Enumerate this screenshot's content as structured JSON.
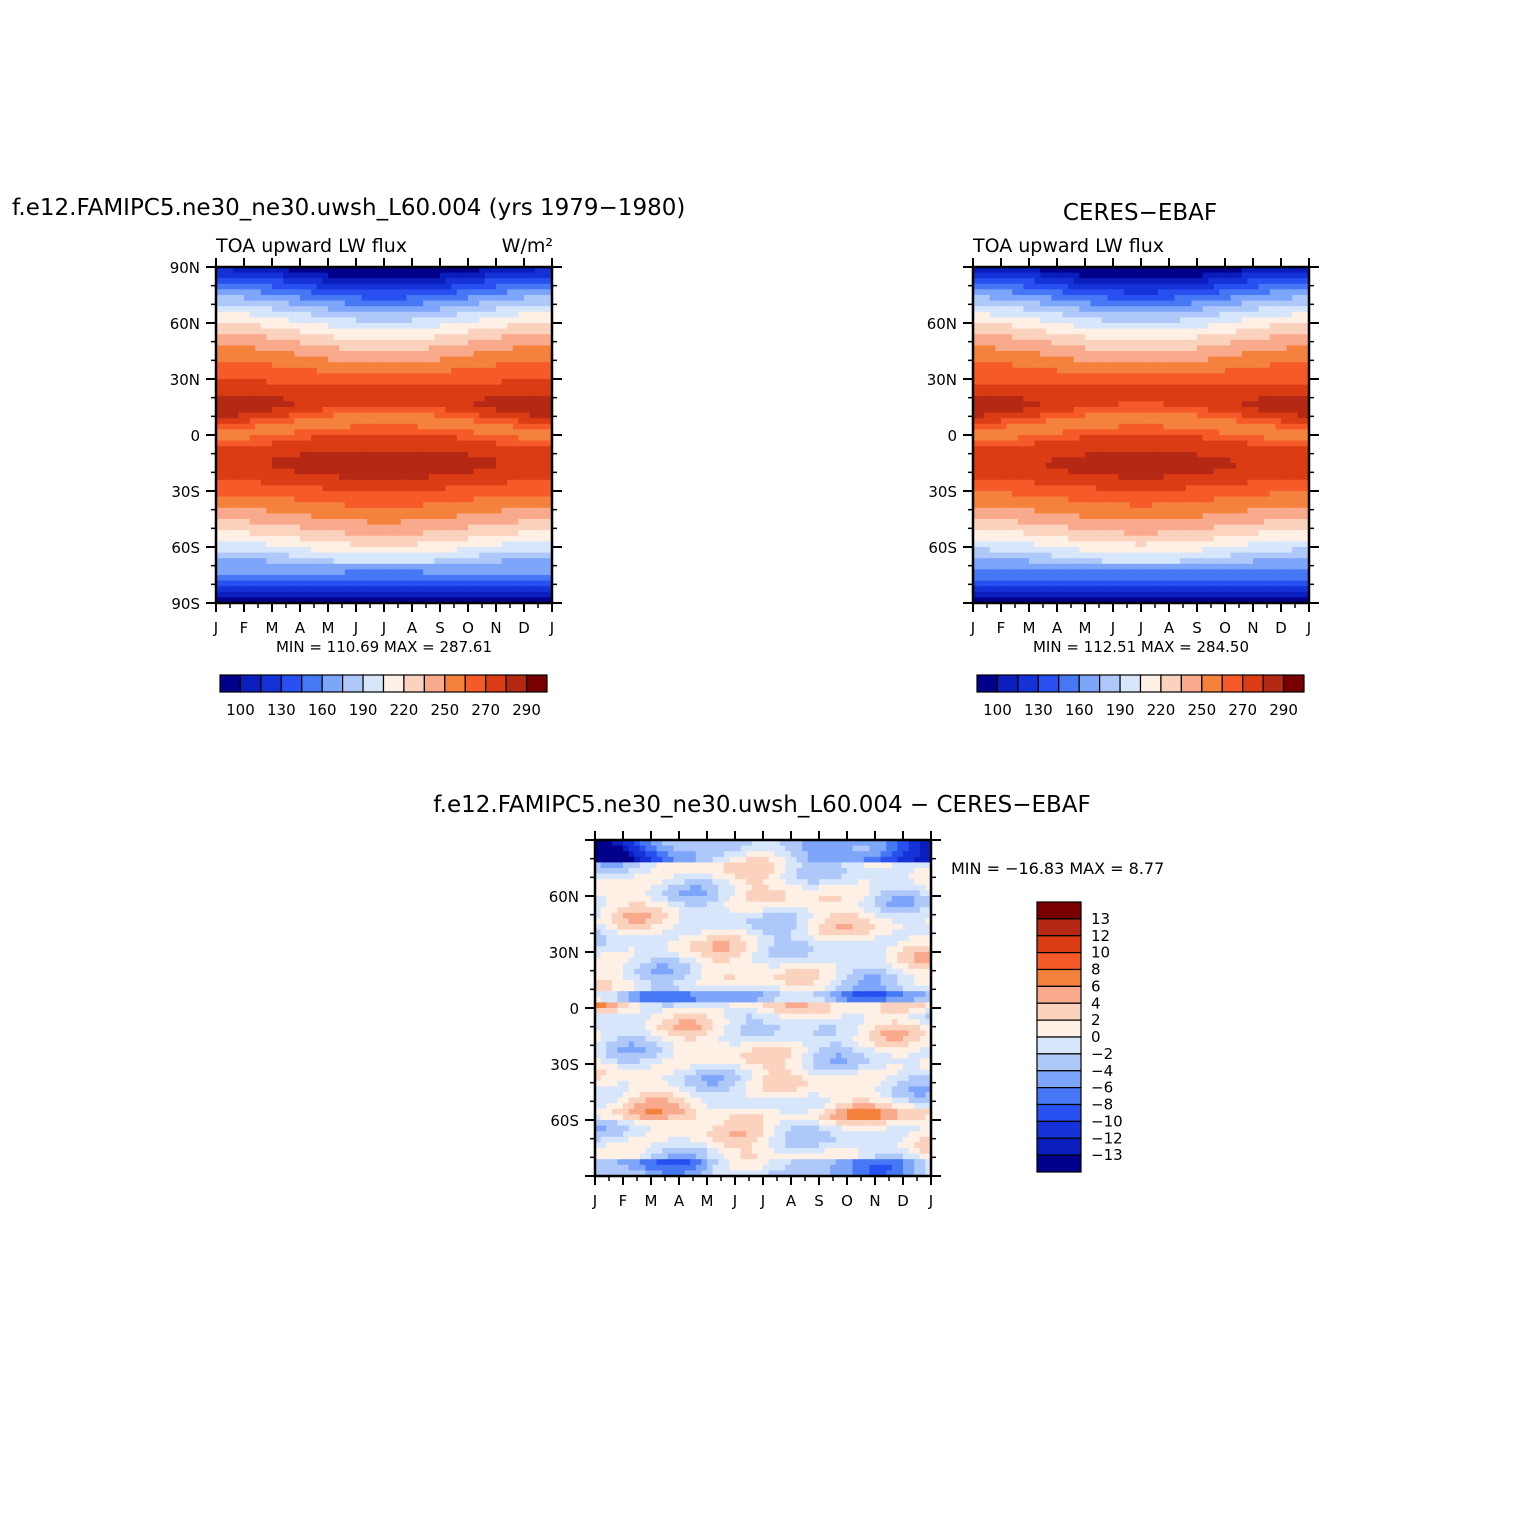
{
  "chart_data": [
    {
      "type": "heatmap",
      "title": "f.e12.FAMIPC5.ne30_ne30.uwsh_L60.004 (yrs 1979−1980)",
      "subtitle": "TOA upward LW flux",
      "units": "W/m²",
      "x_ticks": [
        "J",
        "F",
        "M",
        "A",
        "M",
        "J",
        "J",
        "A",
        "S",
        "O",
        "N",
        "D",
        "J"
      ],
      "y_ticks": [
        "90N",
        "60N",
        "30N",
        "0",
        "30S",
        "60S",
        "90S"
      ],
      "stats": "MIN = 110.69  MAX = 287.61",
      "colorbar_labels": [
        "100",
        "130",
        "160",
        "190",
        "220",
        "250",
        "270",
        "290"
      ],
      "colorbar_colors": [
        "#00008b",
        "#0a1ebe",
        "#1432d7",
        "#2850f0",
        "#4678f5",
        "#7da5fa",
        "#afc8fa",
        "#d7e6fa",
        "#fff0e6",
        "#fad2be",
        "#faaa8c",
        "#f5823c",
        "#f55a28",
        "#dc3c14",
        "#b42814",
        "#780000"
      ],
      "levels": [
        100,
        110,
        120,
        130,
        140,
        150,
        160,
        170,
        180,
        190,
        200,
        210,
        220,
        230,
        240,
        250,
        260,
        270,
        280,
        290
      ],
      "ylim": [
        -90,
        90
      ]
    },
    {
      "type": "heatmap",
      "title": "CERES−EBAF",
      "subtitle": "TOA upward LW flux",
      "x_ticks": [
        "J",
        "F",
        "M",
        "A",
        "M",
        "J",
        "J",
        "A",
        "S",
        "O",
        "N",
        "D",
        "J"
      ],
      "y_ticks": [
        "60N",
        "30N",
        "0",
        "30S",
        "60S"
      ],
      "stats": "MIN = 112.51  MAX = 284.50",
      "colorbar_labels": [
        "100",
        "130",
        "160",
        "190",
        "220",
        "250",
        "270",
        "290"
      ],
      "ylim": [
        -90,
        90
      ]
    },
    {
      "type": "heatmap",
      "title": "f.e12.FAMIPC5.ne30_ne30.uwsh_L60.004 − CERES−EBAF",
      "x_ticks": [
        "J",
        "F",
        "M",
        "A",
        "M",
        "J",
        "J",
        "A",
        "S",
        "O",
        "N",
        "D",
        "J"
      ],
      "y_ticks": [
        "60N",
        "30N",
        "0",
        "30S",
        "60S"
      ],
      "stats": "MIN = −16.83 MAX =    8.77",
      "colorbar_labels": [
        "13",
        "12",
        "10",
        "8",
        "6",
        "4",
        "2",
        "0",
        "−2",
        "−4",
        "−6",
        "−8",
        "−10",
        "−12",
        "−13"
      ],
      "colorbar_colors": [
        "#780000",
        "#b42814",
        "#dc3c14",
        "#f55a28",
        "#f5823c",
        "#faaa8c",
        "#fad2be",
        "#fff0e6",
        "#d7e6fa",
        "#afc8fa",
        "#7da5fa",
        "#4678f5",
        "#2850f0",
        "#1432d7",
        "#0a1ebe",
        "#00008b"
      ],
      "ylim": [
        -90,
        90
      ]
    }
  ]
}
